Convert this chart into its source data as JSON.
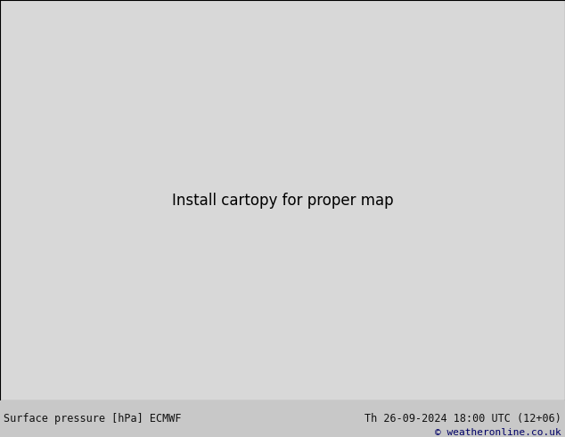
{
  "bottom_left_text": "Surface pressure [hPa] ECMWF",
  "bottom_right_text": "Th 26-09-2024 18:00 UTC (12+06)",
  "copyright_text": "© weatheronline.co.uk",
  "bg_color": "#d8d8d8",
  "land_color": "#b5d6a7",
  "ocean_color": "#d8d8d8",
  "lake_color": "#d8d8d8",
  "border_color": "#888888",
  "coast_color": "#555555",
  "figsize": [
    6.34,
    4.9
  ],
  "dpi": 100,
  "extent": [
    -175,
    -50,
    15,
    80
  ],
  "isobar_interval": 4,
  "blue_color": "#0000cc",
  "red_color": "#cc0000",
  "black_color": "#000000",
  "label_fontsize": 7
}
